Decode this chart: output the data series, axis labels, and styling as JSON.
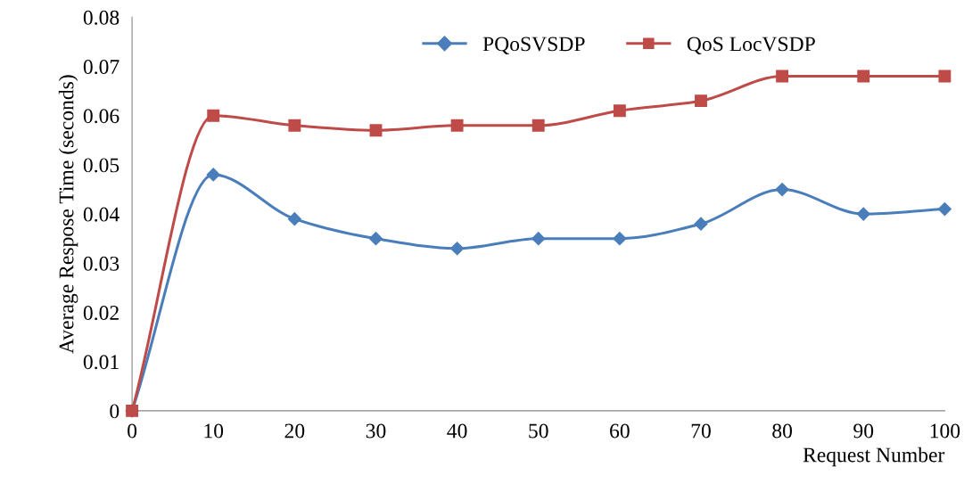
{
  "chart_data": {
    "type": "line",
    "xlabel": "Request Number",
    "ylabel": "Average Respose Time (seconds)",
    "x": [
      0,
      10,
      20,
      30,
      40,
      50,
      60,
      70,
      80,
      90,
      100
    ],
    "series": [
      {
        "name": "PQoSVSDP",
        "color": "#4a7ebb",
        "marker": "diamond",
        "values": [
          0,
          0.048,
          0.039,
          0.035,
          0.033,
          0.035,
          0.035,
          0.038,
          0.045,
          0.04,
          0.041
        ]
      },
      {
        "name": "QoS LocVSDP",
        "color": "#be4b48",
        "marker": "square",
        "values": [
          0,
          0.06,
          0.058,
          0.057,
          0.058,
          0.058,
          0.061,
          0.063,
          0.068,
          0.068,
          0.068
        ]
      }
    ],
    "xlim": [
      0,
      100
    ],
    "xticks": [
      0,
      10,
      20,
      30,
      40,
      50,
      60,
      70,
      80,
      90,
      100
    ],
    "ylim": [
      0,
      0.08
    ],
    "yticks": [
      {
        "value": 0,
        "label": "0"
      },
      {
        "value": 0.01,
        "label": "0.01"
      },
      {
        "value": 0.02,
        "label": "0.02"
      },
      {
        "value": 0.03,
        "label": "0.03"
      },
      {
        "value": 0.04,
        "label": "0.04"
      },
      {
        "value": 0.05,
        "label": "0.05"
      },
      {
        "value": 0.06,
        "label": "0.06"
      },
      {
        "value": 0.07,
        "label": "0.07"
      },
      {
        "value": 0.08,
        "label": "0.08"
      }
    ],
    "legend": "top",
    "grid": false,
    "line_style": "solid"
  }
}
